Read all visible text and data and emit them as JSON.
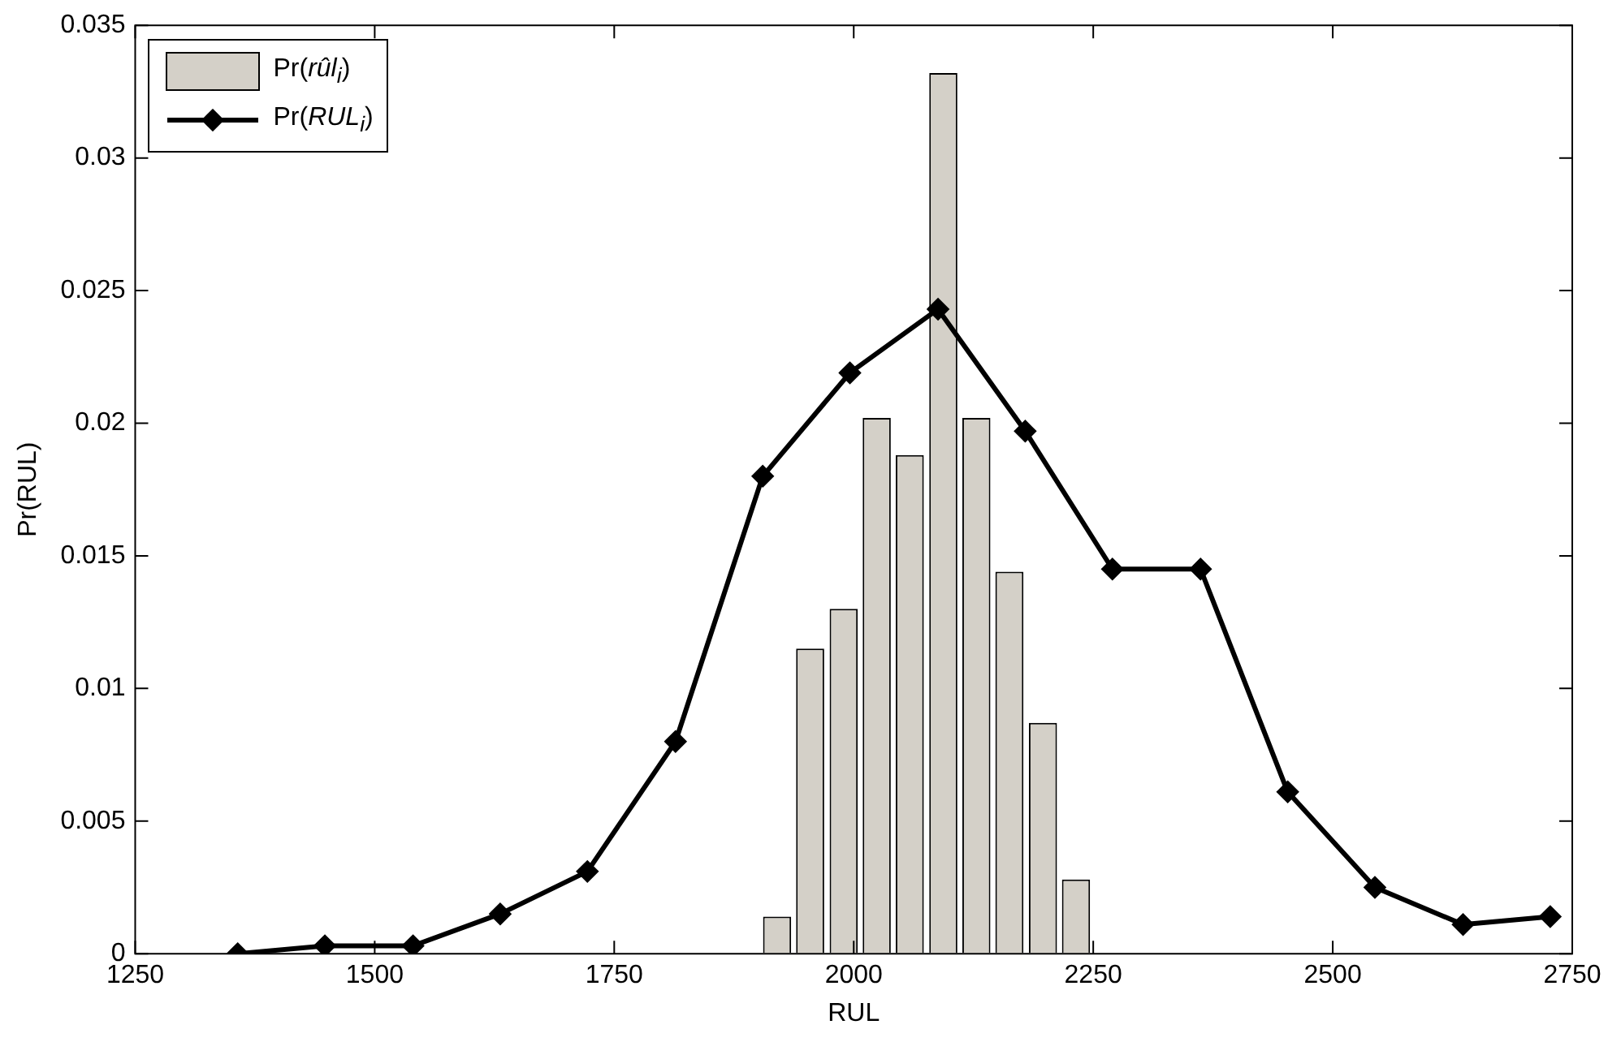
{
  "chart_data": {
    "type": "histogram",
    "xlabel": "RUL",
    "ylabel": "Pr(RUL)",
    "xlim": [
      1250,
      2750
    ],
    "xticks": [
      1250,
      1500,
      1750,
      2000,
      2250,
      2500,
      2750
    ],
    "ylim": [
      0,
      0.035
    ],
    "yticks": [
      0,
      0.005,
      0.01,
      0.015,
      0.02,
      0.025,
      0.03,
      0.035
    ],
    "grid": false,
    "legend": "top left",
    "series": [
      {
        "name": "Pr(rûl$_{i}$)",
        "color": "#d4d0c8",
        "bins": [
          1903,
          1937,
          1972,
          2007,
          2041,
          2076,
          2111,
          2145,
          2180,
          2215,
          2249
        ],
        "values": [
          0.0014,
          0.0115,
          0.013,
          0.0202,
          0.0188,
          0.0332,
          0.0202,
          0.0144,
          0.0087,
          0.0028
        ]
      },
      {
        "type": "line",
        "name": "Pr(RUL$_{i}$)",
        "color": "#000000",
        "marker": "diamond",
        "line_style": "solid",
        "x": [
          1357,
          1448,
          1540,
          1631,
          1722,
          1814,
          1905,
          1996,
          2088,
          2179,
          2270,
          2362,
          2453,
          2544,
          2636,
          2727
        ],
        "values": [
          0,
          0.0003,
          0.0003,
          0.0015,
          0.0031,
          0.008,
          0.018,
          0.0219,
          0.0243,
          0.0197,
          0.0145,
          0.0145,
          0.0061,
          0.0025,
          0.0011,
          0.0014
        ]
      }
    ]
  }
}
